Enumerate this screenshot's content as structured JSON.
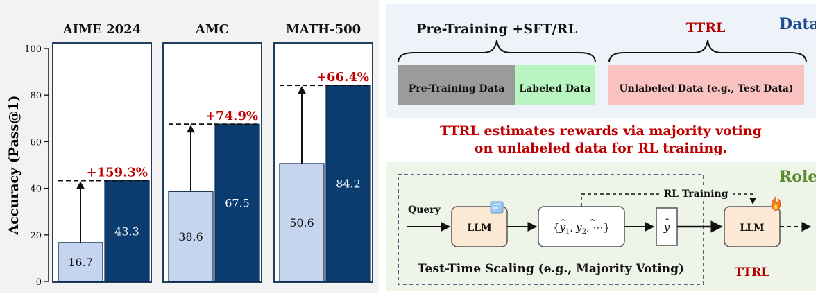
{
  "colors": {
    "baseline": "#c5d5ef",
    "ttrl": "#0b3c70",
    "gain": "#c00000",
    "pretrain": "#9b9b9b",
    "labeled": "#b8f5c0",
    "unlabeled": "#fbc2c2",
    "data_title": "#1f4e8c",
    "role_title": "#5a8a2e",
    "ttrl_text": "#b00000"
  },
  "chart_data": {
    "type": "bar",
    "ylabel": "Accuracy (Pass@1)",
    "ylim": [
      0,
      100
    ],
    "yticks": [
      0,
      20,
      40,
      60,
      80,
      100
    ],
    "tick_labels": [
      "0",
      "20",
      "40",
      "60",
      "80",
      "100"
    ],
    "panels": [
      {
        "title": "AIME 2024",
        "baseline": 16.7,
        "baseline_label": "16.7",
        "ttrl": 43.3,
        "ttrl_label": "43.3",
        "gain_label": "+159.3%"
      },
      {
        "title": "AMC",
        "baseline": 38.6,
        "baseline_label": "38.6",
        "ttrl": 67.5,
        "ttrl_label": "67.5",
        "gain_label": "+74.9%"
      },
      {
        "title": "MATH-500",
        "baseline": 50.6,
        "baseline_label": "50.6",
        "ttrl": 84.2,
        "ttrl_label": "84.2",
        "gain_label": "+66.4%"
      }
    ]
  },
  "data_section": {
    "title": "Data",
    "left_heading": "Pre-Training +SFT/RL",
    "right_heading": "TTRL",
    "pretrain_label": "Pre-Training Data",
    "labeled_label": "Labeled Data",
    "unlabeled_label": "Unlabeled Data (e.g., Test Data)"
  },
  "caption": {
    "line1": "TTRL estimates rewards via majority voting",
    "line2": "on unlabeled data for RL training."
  },
  "role_section": {
    "title": "Role",
    "query": "Query",
    "llm1": "LLM",
    "llm2": "LLM",
    "samples_a": "{",
    "samples_b": ",",
    "samples_c": ", ⋯}",
    "y1": "y",
    "y1_sub": "1",
    "y2": "y",
    "y2_sub": "2",
    "yhat": "y",
    "rl_training": "RL Training",
    "tts_label": "Test-Time Scaling (e.g., Majority Voting)",
    "ttrl_label": "TTRL"
  }
}
